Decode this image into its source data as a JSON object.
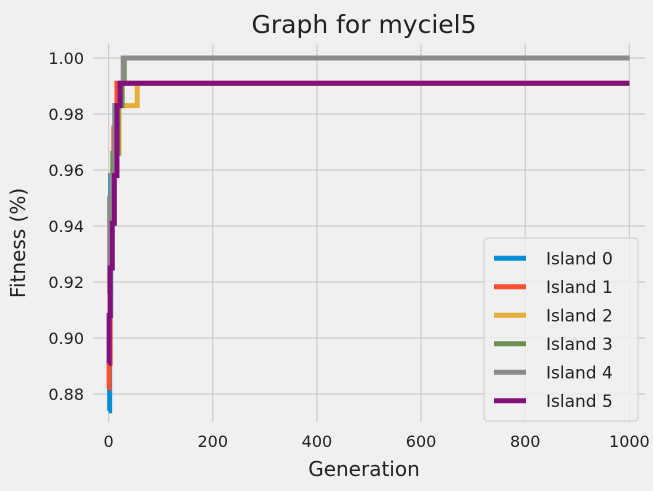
{
  "chart_data": {
    "type": "line",
    "title": "Graph for myciel5",
    "xlabel": "Generation",
    "ylabel": "Fitness (%)",
    "xlim": [
      -30,
      1030
    ],
    "ylim": [
      0.87,
      1.005
    ],
    "xticks": [
      0,
      200,
      400,
      600,
      800,
      1000
    ],
    "xtick_labels": [
      "0",
      "200",
      "400",
      "600",
      "800",
      "1000"
    ],
    "yticks": [
      0.88,
      0.9,
      0.92,
      0.94,
      0.96,
      0.98,
      1.0
    ],
    "ytick_labels": [
      "0.88",
      "0.90",
      "0.92",
      "0.94",
      "0.96",
      "0.98",
      "1.00"
    ],
    "grid": true,
    "legend_position": "lower-right",
    "series": [
      {
        "name": "Island 0",
        "color": "#008fd5",
        "x": [
          0,
          1,
          2,
          2,
          4,
          4,
          6,
          6,
          8,
          8,
          12,
          12,
          20,
          20
        ],
        "y": [
          0.874,
          0.874,
          0.874,
          0.908,
          0.908,
          0.958,
          0.958,
          0.958,
          0.958,
          0.958,
          0.958,
          0.983,
          0.983,
          0.991
        ]
      },
      {
        "name": "Island 1",
        "color": "#fc4f30",
        "x": [
          0,
          1,
          1,
          3,
          3,
          6,
          6,
          10,
          10,
          16,
          16,
          1000
        ],
        "y": [
          0.882,
          0.882,
          0.891,
          0.891,
          0.925,
          0.925,
          0.958,
          0.958,
          0.975,
          0.975,
          0.991,
          0.991
        ]
      },
      {
        "name": "Island 2",
        "color": "#e5ae38",
        "x": [
          0,
          3,
          3,
          6,
          6,
          12,
          12,
          20,
          20,
          30,
          30,
          55,
          55,
          1000
        ],
        "y": [
          0.908,
          0.908,
          0.925,
          0.925,
          0.958,
          0.958,
          0.966,
          0.966,
          0.983,
          0.983,
          0.983,
          0.983,
          0.991,
          0.991
        ]
      },
      {
        "name": "Island 3",
        "color": "#6d904f",
        "x": [
          0,
          3,
          3,
          8,
          8,
          18,
          18,
          26,
          26,
          30,
          30,
          1000
        ],
        "y": [
          0.916,
          0.916,
          0.941,
          0.941,
          0.966,
          0.966,
          0.983,
          0.983,
          0.991,
          0.991,
          1.0,
          1.0
        ]
      },
      {
        "name": "Island 4",
        "color": "#8b8b8b",
        "x": [
          0,
          2,
          2,
          6,
          6,
          12,
          12,
          22,
          22,
          28,
          28,
          1000
        ],
        "y": [
          0.916,
          0.916,
          0.95,
          0.95,
          0.958,
          0.958,
          0.983,
          0.983,
          0.991,
          0.991,
          1.0,
          1.0
        ]
      },
      {
        "name": "Island 5",
        "color": "#810f7c",
        "x": [
          0,
          1,
          1,
          3,
          3,
          7,
          7,
          11,
          11,
          16,
          16,
          18,
          18,
          22,
          22,
          1000
        ],
        "y": [
          0.891,
          0.891,
          0.908,
          0.908,
          0.925,
          0.925,
          0.941,
          0.941,
          0.958,
          0.958,
          0.983,
          0.983,
          0.983,
          0.983,
          0.991,
          0.991
        ]
      }
    ]
  }
}
